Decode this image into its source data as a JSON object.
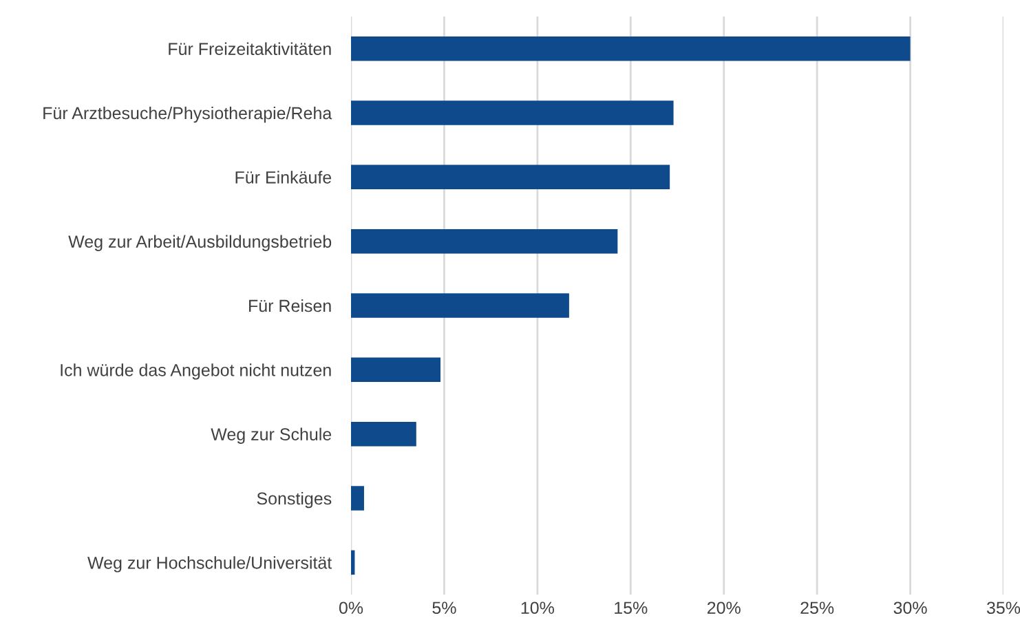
{
  "chart_data": {
    "type": "bar",
    "orientation": "horizontal",
    "categories": [
      "Für Freizeitaktivitäten",
      "Für Arztbesuche/Physiotherapie/Reha",
      "Für Einkäufe",
      "Weg zur Arbeit/Ausbildungsbetrieb",
      "Für Reisen",
      "Ich würde das Angebot nicht nutzen",
      "Weg zur Schule",
      "Sonstiges",
      "Weg zur Hochschule/Universität"
    ],
    "values": [
      30.0,
      17.3,
      17.1,
      14.3,
      11.7,
      4.8,
      3.5,
      0.7,
      0.2
    ],
    "color": "#0e4a8c",
    "xlim": [
      0,
      35
    ],
    "xticks": [
      {
        "value": 0,
        "label": "0%"
      },
      {
        "value": 5,
        "label": "5%"
      },
      {
        "value": 10,
        "label": "10%"
      },
      {
        "value": 15,
        "label": "15%"
      },
      {
        "value": 20,
        "label": "20%"
      },
      {
        "value": 25,
        "label": "25%"
      },
      {
        "value": 30,
        "label": "30%"
      },
      {
        "value": 35,
        "label": "35%"
      }
    ],
    "grid": "x"
  }
}
